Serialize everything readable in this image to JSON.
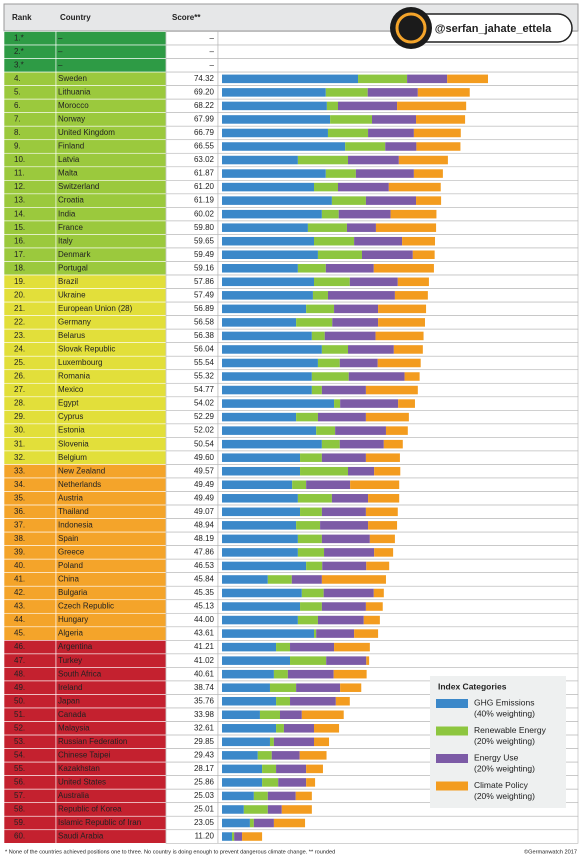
{
  "chart_data": {
    "type": "ranked-bar",
    "headers": {
      "rank": "Rank",
      "country": "Country",
      "score": "Score**"
    },
    "ranks": [
      "1.*",
      "2.*",
      "3.*",
      "4.",
      "5.",
      "6.",
      "7.",
      "8.",
      "9.",
      "10.",
      "11.",
      "12.",
      "13.",
      "14.",
      "15.",
      "16.",
      "17.",
      "18.",
      "19.",
      "20.",
      "21.",
      "22.",
      "23.",
      "24.",
      "25.",
      "26.",
      "27.",
      "28.",
      "29.",
      "30.",
      "31.",
      "32.",
      "33.",
      "34.",
      "35.",
      "36.",
      "37.",
      "38.",
      "39.",
      "40.",
      "41.",
      "42.",
      "43.",
      "44.",
      "45.",
      "46.",
      "47.",
      "48.",
      "49.",
      "50.",
      "51.",
      "52.",
      "53.",
      "54.",
      "55.",
      "56.",
      "57.",
      "58.",
      "59.",
      "60."
    ],
    "categories": [
      "–",
      "–",
      "–",
      "Sweden",
      "Lithuania",
      "Morocco",
      "Norway",
      "United Kingdom",
      "Finland",
      "Latvia",
      "Malta",
      "Switzerland",
      "Croatia",
      "India",
      "France",
      "Italy",
      "Denmark",
      "Portugal",
      "Brazil",
      "Ukraine",
      "European Union (28)",
      "Germany",
      "Belarus",
      "Slovak Republic",
      "Luxembourg",
      "Romania",
      "Mexico",
      "Egypt",
      "Cyprus",
      "Estonia",
      "Slovenia",
      "Belgium",
      "New Zealand",
      "Netherlands",
      "Austria",
      "Thailand",
      "Indonesia",
      "Spain",
      "Greece",
      "Poland",
      "China",
      "Bulgaria",
      "Czech Republic",
      "Hungary",
      "Algeria",
      "Argentina",
      "Turkey",
      "South Africa",
      "Ireland",
      "Japan",
      "Canada",
      "Malaysia",
      "Russian Federation",
      "Chinese Taipei",
      "Kazakhstan",
      "United States",
      "Australia",
      "Republic of Korea",
      "Islamic Republic of Iran",
      "Saudi Arabia"
    ],
    "scores": [
      "–",
      "–",
      "–",
      "74.32",
      "69.20",
      "68.22",
      "67.99",
      "66.79",
      "66.55",
      "63.02",
      "61.87",
      "61.20",
      "61.19",
      "60.02",
      "59.80",
      "59.65",
      "59.49",
      "59.16",
      "57.86",
      "57.49",
      "56.89",
      "56.58",
      "56.38",
      "56.04",
      "55.54",
      "55.32",
      "54.77",
      "54.02",
      "52.29",
      "52.02",
      "50.54",
      "49.60",
      "49.57",
      "49.49",
      "49.49",
      "49.07",
      "48.94",
      "48.19",
      "47.86",
      "46.53",
      "45.84",
      "45.35",
      "45.13",
      "44.00",
      "43.61",
      "41.21",
      "41.02",
      "40.61",
      "38.74",
      "35.76",
      "33.98",
      "32.61",
      "29.85",
      "29.43",
      "28.17",
      "25.86",
      "25.03",
      "25.01",
      "23.05",
      "11.20"
    ],
    "row_colors": [
      "#2e9b45",
      "#2e9b45",
      "#2e9b45",
      "#9bc93d",
      "#9bc93d",
      "#9bc93d",
      "#9bc93d",
      "#9bc93d",
      "#9bc93d",
      "#9bc93d",
      "#9bc93d",
      "#9bc93d",
      "#9bc93d",
      "#9bc93d",
      "#9bc93d",
      "#9bc93d",
      "#9bc93d",
      "#9bc93d",
      "#e2df3a",
      "#e2df3a",
      "#e2df3a",
      "#e2df3a",
      "#e2df3a",
      "#e2df3a",
      "#e2df3a",
      "#e2df3a",
      "#e2df3a",
      "#e2df3a",
      "#e2df3a",
      "#e2df3a",
      "#e2df3a",
      "#e2df3a",
      "#f4a42a",
      "#f4a42a",
      "#f4a42a",
      "#f4a42a",
      "#f4a42a",
      "#f4a42a",
      "#f4a42a",
      "#f4a42a",
      "#f4a42a",
      "#f4a42a",
      "#f4a42a",
      "#f4a42a",
      "#f4a42a",
      "#c4212f",
      "#c4212f",
      "#c4212f",
      "#c4212f",
      "#c4212f",
      "#c4212f",
      "#c4212f",
      "#c4212f",
      "#c4212f",
      "#c4212f",
      "#c4212f",
      "#c4212f",
      "#c4212f",
      "#c4212f",
      "#c4212f"
    ],
    "xlim": [
      0,
      100
    ],
    "series": [
      {
        "name": "GHG Emissions",
        "weighting": "(40% weighting)",
        "color": "#3b88c9",
        "values": [
          null,
          null,
          null,
          38,
          29,
          29.3,
          30.2,
          29.6,
          34.4,
          21.2,
          29,
          25.7,
          30.7,
          27.9,
          24,
          25.7,
          26.8,
          21.2,
          25.7,
          25.4,
          23.5,
          20.7,
          25.1,
          27.9,
          26.8,
          25.1,
          25.1,
          31.3,
          20.7,
          26.3,
          27.9,
          21.8,
          21.8,
          19.6,
          21.2,
          21.8,
          20.7,
          21.2,
          21.2,
          23.5,
          12.8,
          22.3,
          21.8,
          21.2,
          25.7,
          15.1,
          19,
          14.5,
          13.4,
          15.1,
          10.6,
          15.1,
          13.4,
          10,
          11.2,
          11.2,
          8.9,
          6.1,
          7.8,
          2.8
        ]
      },
      {
        "name": "Renewable Energy",
        "weighting": "(20% weighting)",
        "color": "#8dc63f",
        "values": [
          null,
          null,
          null,
          13.7,
          11.7,
          3.1,
          11.7,
          11.2,
          11.2,
          14,
          8.4,
          6.7,
          9.5,
          4.7,
          10.9,
          11.2,
          12.3,
          7.8,
          10,
          4.2,
          7.8,
          10.1,
          3.6,
          7.3,
          6.1,
          10.3,
          2.8,
          1.7,
          6.1,
          5.3,
          5,
          6.1,
          13.4,
          3.9,
          9.5,
          6.1,
          6.7,
          6.7,
          7.3,
          4.5,
          6.7,
          6.1,
          6.1,
          5.6,
          0.6,
          3.9,
          10.1,
          3.9,
          7.3,
          3.9,
          5.6,
          2.2,
          1.1,
          3.9,
          3.9,
          4.5,
          3.9,
          6.7,
          1.1,
          0.6
        ]
      },
      {
        "name": "Energy Use",
        "weighting": "(20% weighting)",
        "color": "#7c5ba6",
        "values": [
          null,
          null,
          null,
          11.2,
          14,
          16.5,
          12.3,
          12.8,
          8.7,
          14.2,
          16.2,
          14.2,
          14,
          14.5,
          8.1,
          13.4,
          14.2,
          13.4,
          13.4,
          18.7,
          12.3,
          12.8,
          14.2,
          12.8,
          10.6,
          15.6,
          12.3,
          16.2,
          13.4,
          14.2,
          12.3,
          12.3,
          7.3,
          12.3,
          10.1,
          12.3,
          13.4,
          13.4,
          14,
          12.3,
          8.4,
          14,
          12.3,
          12.8,
          10.6,
          12.3,
          11.2,
          12.8,
          12.3,
          12.8,
          6.1,
          8.4,
          11.2,
          7.8,
          8.4,
          7.8,
          7.8,
          3.9,
          5.6,
          2.2
        ]
      },
      {
        "name": "Climate Policy",
        "weighting": "(20% weighting)",
        "color": "#f39c1f",
        "values": [
          null,
          null,
          null,
          11.4,
          14.5,
          19.3,
          13.7,
          13.1,
          12.3,
          13.7,
          8.1,
          14.5,
          7,
          12.8,
          16.8,
          9.2,
          6.1,
          16.8,
          8.7,
          9.2,
          13.4,
          13.1,
          13.4,
          8.1,
          12,
          4.2,
          14.5,
          4.7,
          12,
          6.1,
          5.3,
          9.5,
          7.3,
          13.7,
          8.7,
          8.9,
          8.1,
          7,
          5.3,
          6.4,
          17.9,
          2.8,
          4.7,
          4.5,
          6.7,
          10,
          0.8,
          9.2,
          5.9,
          3.9,
          11.7,
          7,
          4.2,
          7.5,
          4.7,
          2.5,
          4.5,
          8.4,
          8.7,
          5.6
        ]
      }
    ],
    "legend_title": "Index Categories",
    "watermark": "@serfan_jahate_ettela",
    "footnote": "* None of the countries achieved positions one to three. No country is doing enough to prevent dangerous climate change. ** rounded",
    "source": "©Germanwatch 2017"
  }
}
